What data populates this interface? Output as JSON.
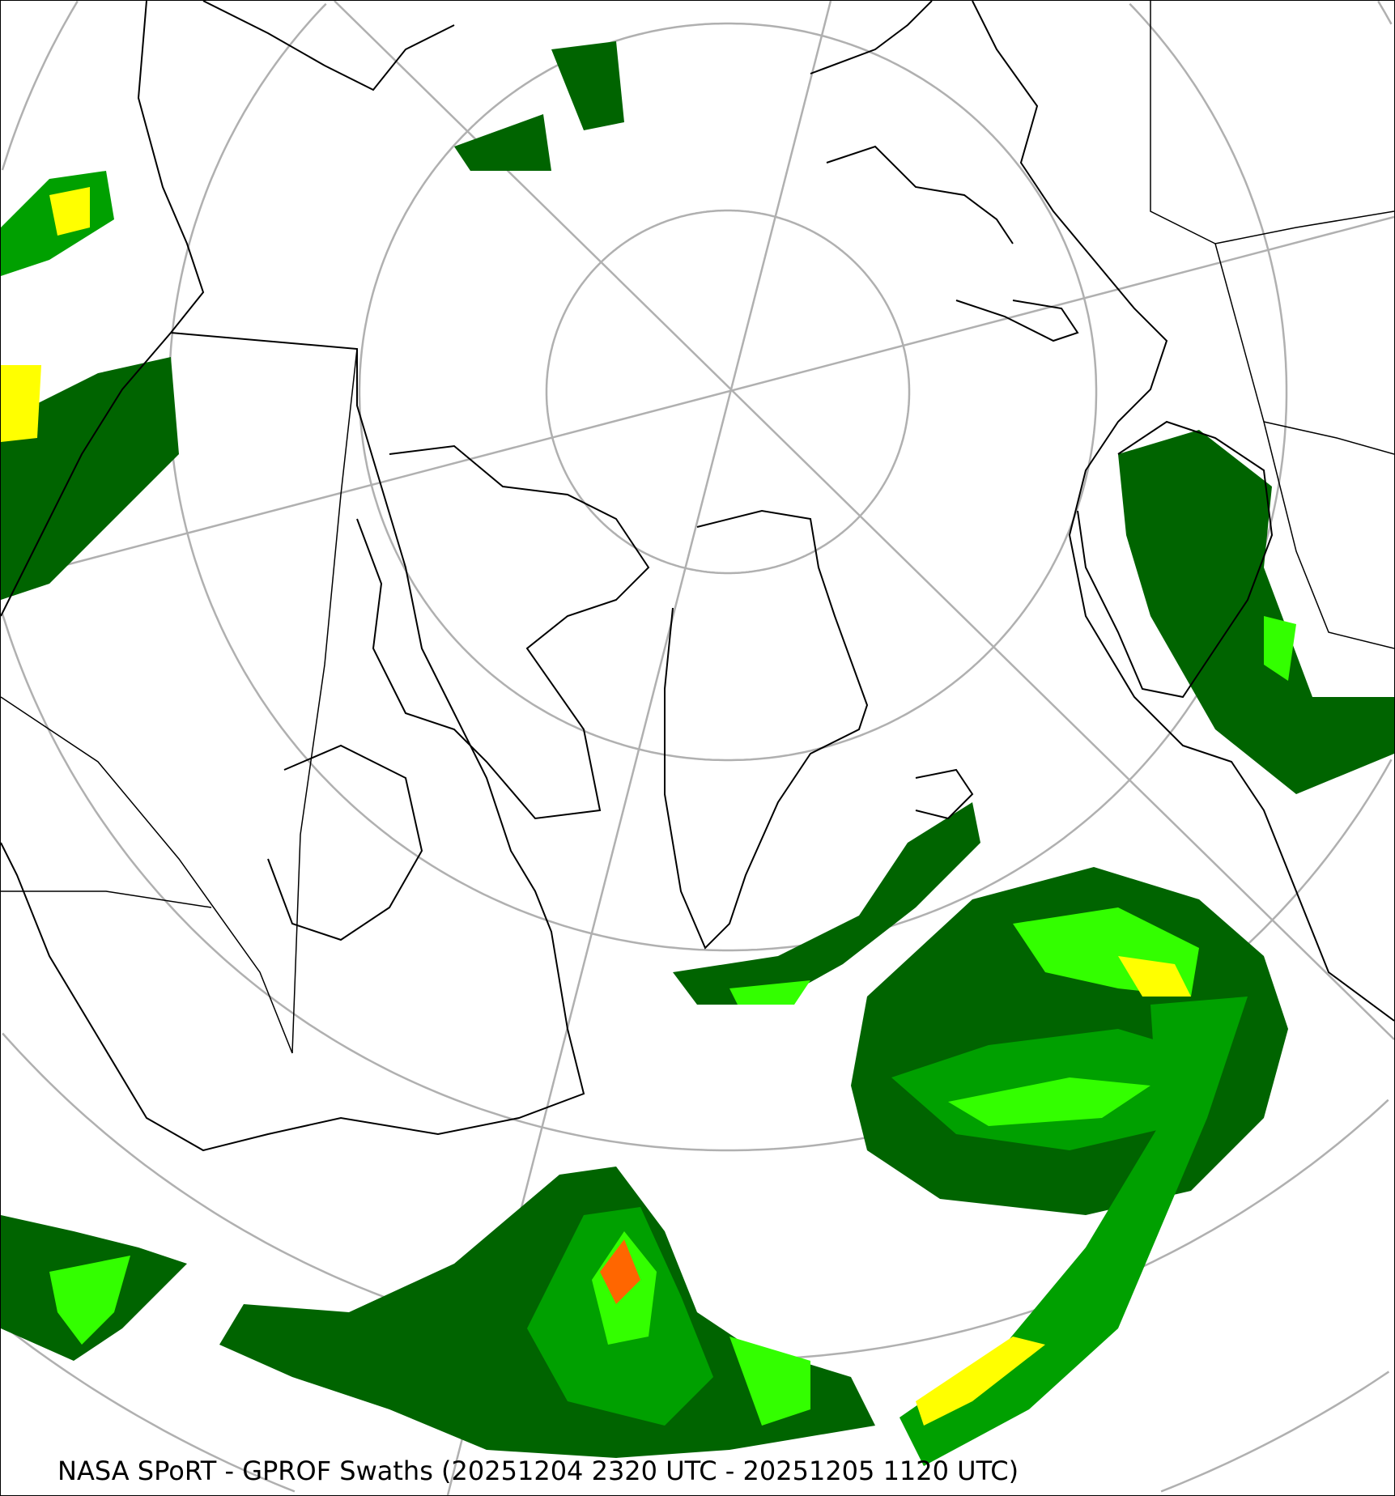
{
  "map": {
    "caption": "NASA SPoRT - GPROF Swaths (20251204 2320 UTC - 20251205 1120 UTC)",
    "projection": "north-polar-stereographic",
    "colors": {
      "graticule": "#b0b0b0",
      "coastline": "#000000",
      "precip_light": "#006400",
      "precip_moderate": "#00a000",
      "precip_heavy": "#33ff00",
      "precip_very_heavy": "#ffff00",
      "precip_extreme": "#ff6600"
    }
  }
}
